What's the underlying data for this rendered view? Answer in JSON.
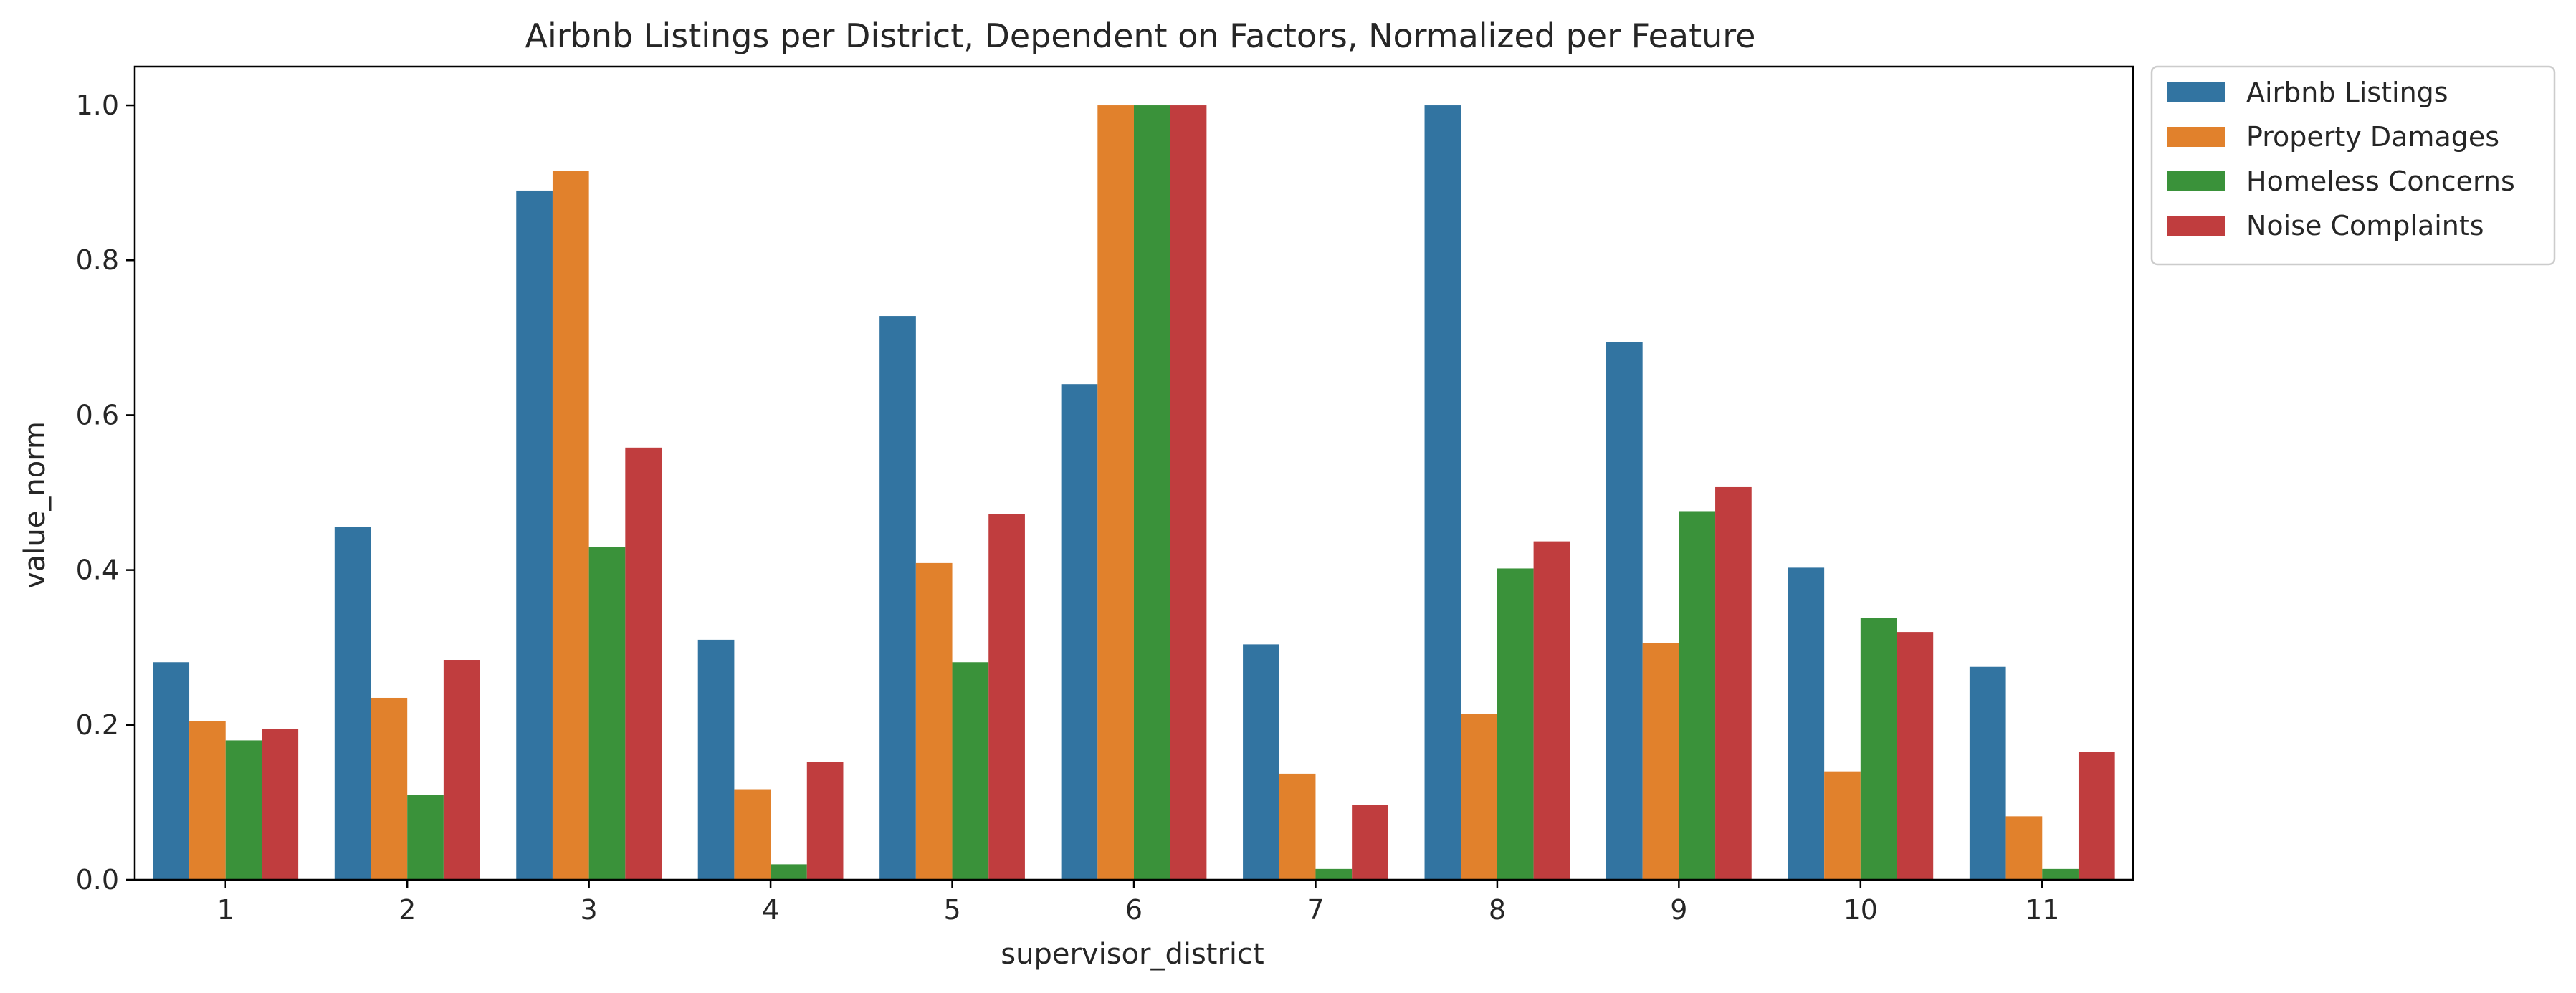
{
  "chart_data": {
    "type": "bar",
    "title": "Airbnb Listings per District, Dependent on Factors, Normalized per Feature",
    "xlabel": "supervisor_district",
    "ylabel": "value_norm",
    "ylim": [
      0,
      1.05
    ],
    "yticks": [
      "0.0",
      "0.2",
      "0.4",
      "0.6",
      "0.8",
      "1.0"
    ],
    "ytick_values": [
      0,
      0.2,
      0.4,
      0.6,
      0.8,
      1.0
    ],
    "categories": [
      "1",
      "2",
      "3",
      "4",
      "5",
      "6",
      "7",
      "8",
      "9",
      "10",
      "11"
    ],
    "grid": false,
    "legend_position": "outside-top-right",
    "series": [
      {
        "name": "Airbnb Listings",
        "color": "#3274a1",
        "values": [
          0.281,
          0.456,
          0.89,
          0.31,
          0.728,
          0.64,
          0.304,
          1.0,
          0.694,
          0.403,
          0.275
        ]
      },
      {
        "name": "Property Damages",
        "color": "#e1812c",
        "values": [
          0.205,
          0.235,
          0.915,
          0.117,
          0.409,
          1.0,
          0.137,
          0.214,
          0.306,
          0.14,
          0.082
        ]
      },
      {
        "name": "Homeless Concerns",
        "color": "#3a923a",
        "values": [
          0.18,
          0.11,
          0.43,
          0.02,
          0.281,
          1.0,
          0.014,
          0.402,
          0.476,
          0.338,
          0.014
        ]
      },
      {
        "name": "Noise Complaints",
        "color": "#c03d3e",
        "values": [
          0.195,
          0.284,
          0.558,
          0.152,
          0.472,
          1.0,
          0.097,
          0.437,
          0.507,
          0.32,
          0.165
        ]
      }
    ]
  }
}
